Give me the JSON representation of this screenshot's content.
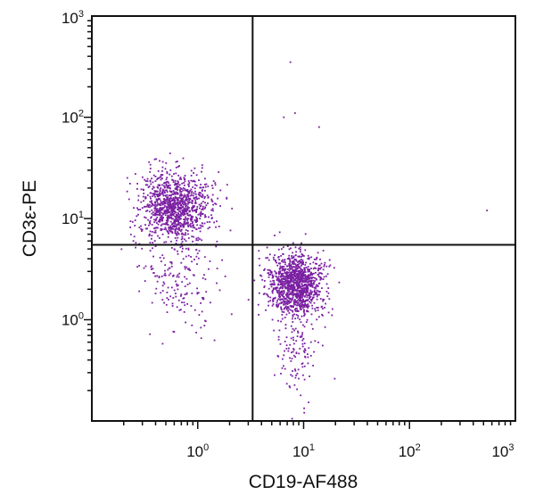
{
  "chart_data": {
    "type": "scatter",
    "title": "",
    "xlabel": "CD19-AF488",
    "ylabel": "CD3ε-PE",
    "xscale": "log",
    "yscale": "log",
    "xlim": [
      0.1,
      1000
    ],
    "ylim": [
      0.1,
      1000
    ],
    "x_ticks": [
      {
        "value": 1,
        "base": "10",
        "exp": "0"
      },
      {
        "value": 10,
        "base": "10",
        "exp": "1"
      },
      {
        "value": 100,
        "base": "10",
        "exp": "2"
      },
      {
        "value": 1000,
        "base": "10",
        "exp": "3"
      }
    ],
    "y_ticks": [
      {
        "value": 1,
        "base": "10",
        "exp": "0"
      },
      {
        "value": 10,
        "base": "10",
        "exp": "1"
      },
      {
        "value": 100,
        "base": "10",
        "exp": "2"
      },
      {
        "value": 1000,
        "base": "10",
        "exp": "3"
      }
    ],
    "quadrant_gates": {
      "x": 3.3,
      "y": 5.5
    },
    "point_color": "#7a1fa2",
    "populations": [
      {
        "center_x": 0.6,
        "center_y": 13,
        "count": 1100,
        "spread_log_x": 0.17,
        "spread_log_y": 0.17
      },
      {
        "center_x": 0.7,
        "center_y": 2.5,
        "count": 180,
        "spread_log_x": 0.18,
        "spread_log_y": 0.28
      },
      {
        "center_x": 8.5,
        "center_y": 2.2,
        "count": 1200,
        "spread_log_x": 0.13,
        "spread_log_y": 0.15
      },
      {
        "center_x": 9,
        "center_y": 0.5,
        "count": 120,
        "spread_log_x": 0.1,
        "spread_log_y": 0.22
      }
    ],
    "notable_points": [
      {
        "x": 7.5,
        "y": 350
      },
      {
        "x": 8.3,
        "y": 110
      },
      {
        "x": 6.5,
        "y": 100
      },
      {
        "x": 14,
        "y": 80
      },
      {
        "x": 540,
        "y": 12
      }
    ]
  }
}
